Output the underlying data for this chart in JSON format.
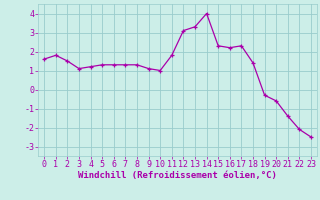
{
  "hours": [
    0,
    1,
    2,
    3,
    4,
    5,
    6,
    7,
    8,
    9,
    10,
    11,
    12,
    13,
    14,
    15,
    16,
    17,
    18,
    19,
    20,
    21,
    22,
    23
  ],
  "values": [
    1.6,
    1.8,
    1.5,
    1.1,
    1.2,
    1.3,
    1.3,
    1.3,
    1.3,
    1.1,
    1.0,
    1.8,
    3.1,
    3.3,
    4.0,
    2.3,
    2.2,
    2.3,
    1.4,
    -0.3,
    -0.6,
    -1.4,
    -2.1,
    -2.5
  ],
  "line_color": "#aa00aa",
  "marker": "+",
  "bg_color": "#cceee8",
  "grid_color": "#99cccc",
  "xlabel": "Windchill (Refroidissement éolien,°C)",
  "xlabel_color": "#aa00aa",
  "xlabel_fontsize": 6.5,
  "tick_fontsize": 6,
  "ylim": [
    -3.5,
    4.5
  ],
  "yticks": [
    -3,
    -2,
    -1,
    0,
    1,
    2,
    3,
    4
  ],
  "xticks": [
    0,
    1,
    2,
    3,
    4,
    5,
    6,
    7,
    8,
    9,
    10,
    11,
    12,
    13,
    14,
    15,
    16,
    17,
    18,
    19,
    20,
    21,
    22,
    23
  ],
  "xlim": [
    -0.5,
    23.5
  ]
}
